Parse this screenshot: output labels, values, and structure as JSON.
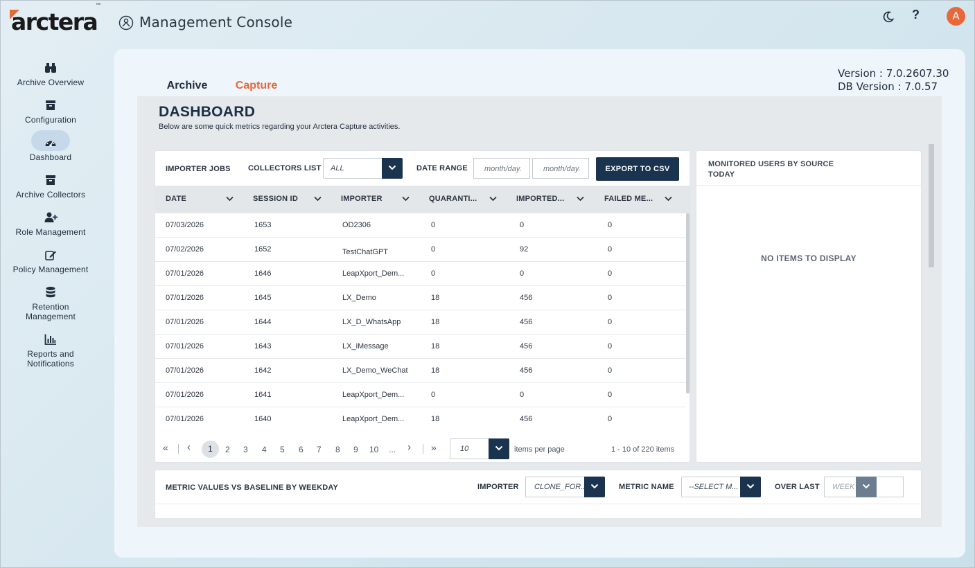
{
  "header": {
    "logo_text": "arctera",
    "logo_tm": "™",
    "app_title": "Management Console",
    "avatar_initial": "A",
    "help_label": "?"
  },
  "sidebar": {
    "items": [
      {
        "label": "Archive Overview",
        "icon": "binoculars-icon"
      },
      {
        "label": "Configuration",
        "icon": "archive-box-icon"
      },
      {
        "label": "Dashboard",
        "icon": "gauge-icon",
        "active": true
      },
      {
        "label": "Archive Collectors",
        "icon": "archive-box-icon"
      },
      {
        "label": "Role Management",
        "icon": "user-plus-icon"
      },
      {
        "label": "Policy Management",
        "icon": "edit-icon"
      },
      {
        "label": "Retention Management",
        "label_line1": "Retention",
        "label_line2": "Management",
        "icon": "database-icon"
      },
      {
        "label": "Reports and Notifications",
        "label_line1": "Reports and",
        "label_line2": "Notifications",
        "icon": "bar-chart-icon"
      }
    ]
  },
  "tabs": [
    {
      "label": "Archive"
    },
    {
      "label": "Capture",
      "active": true
    }
  ],
  "version": {
    "app": "Version : 7.0.2607.30",
    "db": "DB Version : 7.0.57"
  },
  "dashboard": {
    "title": "DASHBOARD",
    "subtitle": "Below are some quick metrics regarding your Arctera Capture activities."
  },
  "importer_jobs": {
    "title": "IMPORTER JOBS",
    "collectors_label": "COLLECTORS LIST",
    "collectors_value": "ALL",
    "date_range_label": "DATE RANGE",
    "date_from_placeholder": "month/day.",
    "date_to_placeholder": "month/day.",
    "export_label": "EXPORT TO CSV",
    "columns": [
      "DATE",
      "SESSION ID",
      "IMPORTER",
      "QUARANTI...",
      "IMPORTED...",
      "FAILED ME..."
    ],
    "rows": [
      [
        "07/03/2026",
        "1653",
        "OD2306",
        "0",
        "0",
        "0"
      ],
      [
        "07/02/2026",
        "1652",
        "TestChatGPT",
        "0",
        "92",
        "0"
      ],
      [
        "07/01/2026",
        "1646",
        "LeapXport_Dem...",
        "0",
        "0",
        "0"
      ],
      [
        "07/01/2026",
        "1645",
        "LX_Demo",
        "18",
        "456",
        "0"
      ],
      [
        "07/01/2026",
        "1644",
        "LX_D_WhatsApp",
        "18",
        "456",
        "0"
      ],
      [
        "07/01/2026",
        "1643",
        "LX_iMessage",
        "18",
        "456",
        "0"
      ],
      [
        "07/01/2026",
        "1642",
        "LX_Demo_WeChat",
        "18",
        "456",
        "0"
      ],
      [
        "07/01/2026",
        "1641",
        "LeapXport_Dem...",
        "0",
        "0",
        "0"
      ],
      [
        "07/01/2026",
        "1640",
        "LeapXport_Dem...",
        "18",
        "456",
        "0"
      ]
    ],
    "pager": {
      "first": "«",
      "prev": "‹",
      "pages": [
        "1",
        "2",
        "3",
        "4",
        "5",
        "6",
        "7",
        "8",
        "9",
        "10",
        "..."
      ],
      "current": "1",
      "next": "›",
      "last": "»",
      "per_page_value": "10",
      "per_page_label": "items per page",
      "count_text": "1 - 10 of 220 items"
    }
  },
  "monitored_users": {
    "title_line1": "MONITORED USERS BY SOURCE",
    "title_line2": "TODAY",
    "empty_text": "NO ITEMS TO DISPLAY"
  },
  "metric_card": {
    "title": "METRIC VALUES VS BASELINE BY WEEKDAY",
    "importer_label": "IMPORTER",
    "importer_value": "CLONE_FOR...",
    "metric_label": "METRIC NAME",
    "metric_value": "--SELECT M...",
    "over_last_label": "OVER LAST",
    "over_last_value": "WEEK"
  },
  "colors": {
    "accent": "#e8683a",
    "navy": "#1a3450",
    "panel": "#eef5fb"
  }
}
